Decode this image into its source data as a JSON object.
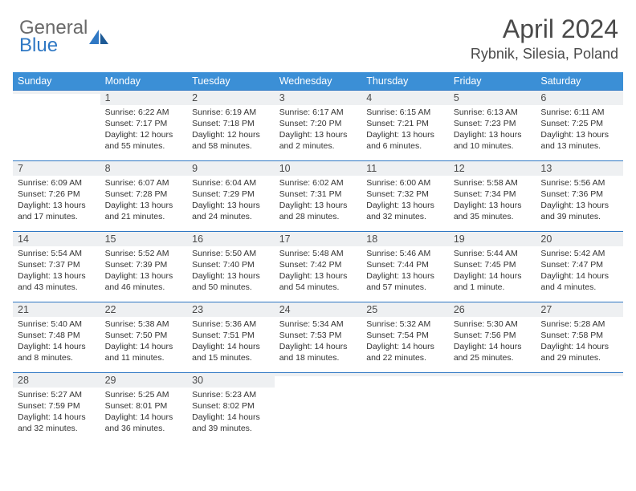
{
  "brand": {
    "line1": "General",
    "line2": "Blue",
    "logo_fill": "#2f78c4"
  },
  "title": "April 2024",
  "location": "Rybnik, Silesia, Poland",
  "colors": {
    "header_bg": "#3b8fd6",
    "header_text": "#ffffff",
    "cell_number_bg": "#eef0f2",
    "rule": "#2f78c4",
    "body_text": "#333333",
    "title_text": "#4a4a4a"
  },
  "day_headers": [
    "Sunday",
    "Monday",
    "Tuesday",
    "Wednesday",
    "Thursday",
    "Friday",
    "Saturday"
  ],
  "weeks": [
    [
      {
        "n": "",
        "sr": "",
        "ss": "",
        "dl": ""
      },
      {
        "n": "1",
        "sr": "Sunrise: 6:22 AM",
        "ss": "Sunset: 7:17 PM",
        "dl": "Daylight: 12 hours and 55 minutes."
      },
      {
        "n": "2",
        "sr": "Sunrise: 6:19 AM",
        "ss": "Sunset: 7:18 PM",
        "dl": "Daylight: 12 hours and 58 minutes."
      },
      {
        "n": "3",
        "sr": "Sunrise: 6:17 AM",
        "ss": "Sunset: 7:20 PM",
        "dl": "Daylight: 13 hours and 2 minutes."
      },
      {
        "n": "4",
        "sr": "Sunrise: 6:15 AM",
        "ss": "Sunset: 7:21 PM",
        "dl": "Daylight: 13 hours and 6 minutes."
      },
      {
        "n": "5",
        "sr": "Sunrise: 6:13 AM",
        "ss": "Sunset: 7:23 PM",
        "dl": "Daylight: 13 hours and 10 minutes."
      },
      {
        "n": "6",
        "sr": "Sunrise: 6:11 AM",
        "ss": "Sunset: 7:25 PM",
        "dl": "Daylight: 13 hours and 13 minutes."
      }
    ],
    [
      {
        "n": "7",
        "sr": "Sunrise: 6:09 AM",
        "ss": "Sunset: 7:26 PM",
        "dl": "Daylight: 13 hours and 17 minutes."
      },
      {
        "n": "8",
        "sr": "Sunrise: 6:07 AM",
        "ss": "Sunset: 7:28 PM",
        "dl": "Daylight: 13 hours and 21 minutes."
      },
      {
        "n": "9",
        "sr": "Sunrise: 6:04 AM",
        "ss": "Sunset: 7:29 PM",
        "dl": "Daylight: 13 hours and 24 minutes."
      },
      {
        "n": "10",
        "sr": "Sunrise: 6:02 AM",
        "ss": "Sunset: 7:31 PM",
        "dl": "Daylight: 13 hours and 28 minutes."
      },
      {
        "n": "11",
        "sr": "Sunrise: 6:00 AM",
        "ss": "Sunset: 7:32 PM",
        "dl": "Daylight: 13 hours and 32 minutes."
      },
      {
        "n": "12",
        "sr": "Sunrise: 5:58 AM",
        "ss": "Sunset: 7:34 PM",
        "dl": "Daylight: 13 hours and 35 minutes."
      },
      {
        "n": "13",
        "sr": "Sunrise: 5:56 AM",
        "ss": "Sunset: 7:36 PM",
        "dl": "Daylight: 13 hours and 39 minutes."
      }
    ],
    [
      {
        "n": "14",
        "sr": "Sunrise: 5:54 AM",
        "ss": "Sunset: 7:37 PM",
        "dl": "Daylight: 13 hours and 43 minutes."
      },
      {
        "n": "15",
        "sr": "Sunrise: 5:52 AM",
        "ss": "Sunset: 7:39 PM",
        "dl": "Daylight: 13 hours and 46 minutes."
      },
      {
        "n": "16",
        "sr": "Sunrise: 5:50 AM",
        "ss": "Sunset: 7:40 PM",
        "dl": "Daylight: 13 hours and 50 minutes."
      },
      {
        "n": "17",
        "sr": "Sunrise: 5:48 AM",
        "ss": "Sunset: 7:42 PM",
        "dl": "Daylight: 13 hours and 54 minutes."
      },
      {
        "n": "18",
        "sr": "Sunrise: 5:46 AM",
        "ss": "Sunset: 7:44 PM",
        "dl": "Daylight: 13 hours and 57 minutes."
      },
      {
        "n": "19",
        "sr": "Sunrise: 5:44 AM",
        "ss": "Sunset: 7:45 PM",
        "dl": "Daylight: 14 hours and 1 minute."
      },
      {
        "n": "20",
        "sr": "Sunrise: 5:42 AM",
        "ss": "Sunset: 7:47 PM",
        "dl": "Daylight: 14 hours and 4 minutes."
      }
    ],
    [
      {
        "n": "21",
        "sr": "Sunrise: 5:40 AM",
        "ss": "Sunset: 7:48 PM",
        "dl": "Daylight: 14 hours and 8 minutes."
      },
      {
        "n": "22",
        "sr": "Sunrise: 5:38 AM",
        "ss": "Sunset: 7:50 PM",
        "dl": "Daylight: 14 hours and 11 minutes."
      },
      {
        "n": "23",
        "sr": "Sunrise: 5:36 AM",
        "ss": "Sunset: 7:51 PM",
        "dl": "Daylight: 14 hours and 15 minutes."
      },
      {
        "n": "24",
        "sr": "Sunrise: 5:34 AM",
        "ss": "Sunset: 7:53 PM",
        "dl": "Daylight: 14 hours and 18 minutes."
      },
      {
        "n": "25",
        "sr": "Sunrise: 5:32 AM",
        "ss": "Sunset: 7:54 PM",
        "dl": "Daylight: 14 hours and 22 minutes."
      },
      {
        "n": "26",
        "sr": "Sunrise: 5:30 AM",
        "ss": "Sunset: 7:56 PM",
        "dl": "Daylight: 14 hours and 25 minutes."
      },
      {
        "n": "27",
        "sr": "Sunrise: 5:28 AM",
        "ss": "Sunset: 7:58 PM",
        "dl": "Daylight: 14 hours and 29 minutes."
      }
    ],
    [
      {
        "n": "28",
        "sr": "Sunrise: 5:27 AM",
        "ss": "Sunset: 7:59 PM",
        "dl": "Daylight: 14 hours and 32 minutes."
      },
      {
        "n": "29",
        "sr": "Sunrise: 5:25 AM",
        "ss": "Sunset: 8:01 PM",
        "dl": "Daylight: 14 hours and 36 minutes."
      },
      {
        "n": "30",
        "sr": "Sunrise: 5:23 AM",
        "ss": "Sunset: 8:02 PM",
        "dl": "Daylight: 14 hours and 39 minutes."
      },
      {
        "n": "",
        "sr": "",
        "ss": "",
        "dl": ""
      },
      {
        "n": "",
        "sr": "",
        "ss": "",
        "dl": ""
      },
      {
        "n": "",
        "sr": "",
        "ss": "",
        "dl": ""
      },
      {
        "n": "",
        "sr": "",
        "ss": "",
        "dl": ""
      }
    ]
  ]
}
